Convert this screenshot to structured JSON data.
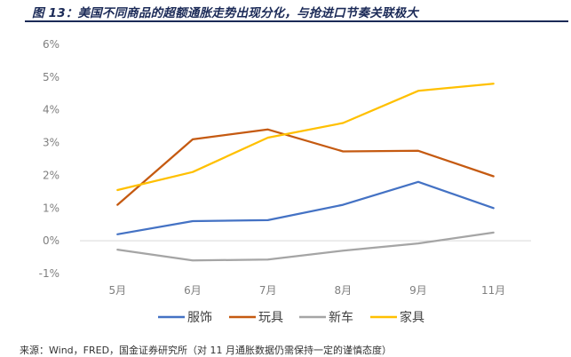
{
  "figure": {
    "title": "图 13：美国不同商品的超额通胀走势出现分化，与抢进口节奏关联极大",
    "source": "来源：Wind，FRED，国金证券研究所（对 11 月通胀数据仍需保持一定的谨慎态度）"
  },
  "chart_data": {
    "type": "line",
    "title": "",
    "xlabel": "",
    "ylabel": "",
    "categories": [
      "5月",
      "6月",
      "7月",
      "8月",
      "9月",
      "11月"
    ],
    "ylim": [
      -1,
      6
    ],
    "yticks": [
      -1,
      0,
      1,
      2,
      3,
      4,
      5,
      6
    ],
    "ytick_labels": [
      "-1%",
      "0%",
      "1%",
      "2%",
      "3%",
      "4%",
      "5%",
      "6%"
    ],
    "grid": false,
    "legend_position": "bottom",
    "series": [
      {
        "name": "服饰",
        "color": "#4472c4",
        "values": [
          0.2,
          0.6,
          0.63,
          1.1,
          1.8,
          1.0
        ]
      },
      {
        "name": "玩具",
        "color": "#c55a11",
        "values": [
          1.1,
          3.1,
          3.4,
          2.73,
          2.75,
          1.97
        ]
      },
      {
        "name": "新车",
        "color": "#a5a5a5",
        "values": [
          -0.27,
          -0.6,
          -0.57,
          -0.3,
          -0.08,
          0.25
        ]
      },
      {
        "name": "家具",
        "color": "#ffc000",
        "values": [
          1.55,
          2.1,
          3.15,
          3.6,
          4.58,
          4.8
        ]
      }
    ]
  }
}
